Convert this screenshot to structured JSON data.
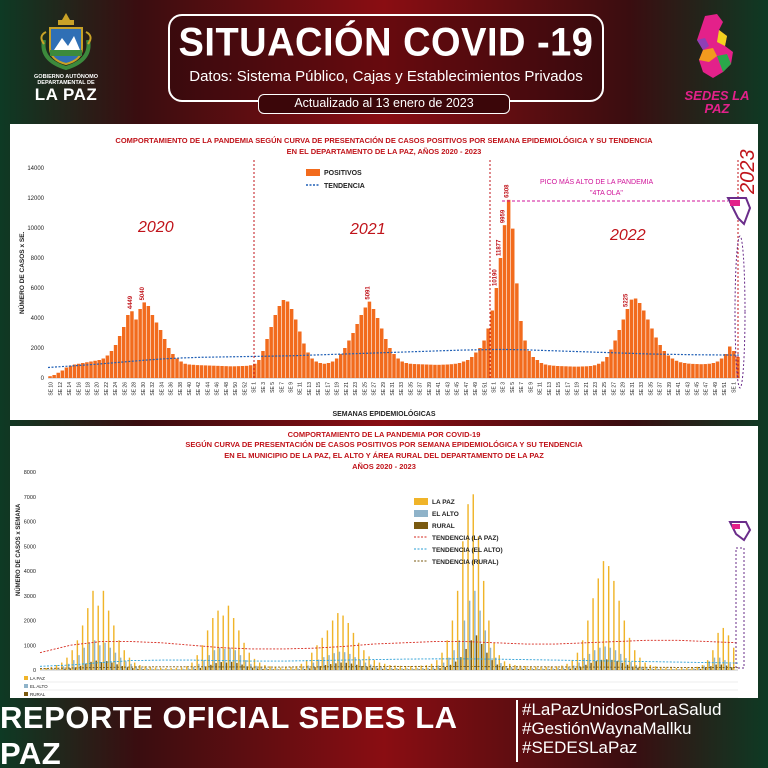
{
  "header": {
    "title": "SITUACIÓN COVID -19",
    "subtitle": "Datos: Sistema Público, Cajas y Establecimientos Privados",
    "updated": "Actualizado  al  13  enero de 2023",
    "left_logo_text": "GOBIERNO AUTÓNOMO DEPARTAMENTAL DE",
    "left_logo_big": "LA PAZ",
    "right_logo_text": "SEDES LA PAZ"
  },
  "footer": {
    "report": "REPORTE OFICIAL SEDES LA PAZ",
    "tags": [
      "#LaPazUnidosPorLaSalud",
      "#GestiónWaynaMallku",
      "#SEDESLaPaz"
    ]
  },
  "colors": {
    "positivos": "#f26b1d",
    "tendencia": "#1f5fb5",
    "lapaz": "#f0b429",
    "elalto": "#8fb3c9",
    "rural": "#7a5a10",
    "title_red": "#c0131a"
  },
  "chart_data": [
    {
      "type": "bar",
      "title": "COMPORTAMIENTO DE LA PANDEMIA SEGÚN CURVA DE PRESENTACIÓN DE CASOS POSITIVOS POR SEMANA EPIDEMIOLÓGICA Y SU TENDENCIA",
      "subtitle": "EN EL DEPARTAMENTO DE LA PAZ, AÑOS 2020 - 2023",
      "xlabel": "SEMANAS EPIDEMIOLÓGICAS",
      "ylabel": "NÚMERO DE CASOS x SE.",
      "ylim": [
        0,
        14000
      ],
      "yticks": [
        0,
        2000,
        4000,
        6000,
        8000,
        10000,
        12000,
        14000
      ],
      "grid": false,
      "legend": [
        "POSITIVOS",
        "TENDENCIA"
      ],
      "legend_position": "top-center",
      "year_labels": [
        "2020",
        "2021",
        "2022",
        "2023"
      ],
      "annotation": "PICO MÁS ALTO DE LA PANDEMIA",
      "annotation2": "\"4TA OLA\"",
      "labeled_values": [
        "10190",
        "11877",
        "9959",
        "6308",
        "4449",
        "5040",
        "5091",
        "5225"
      ],
      "categories_2020": [
        "SE 10",
        "SE 12",
        "SE 14",
        "SE 16",
        "SE 18",
        "SE 20",
        "SE 22",
        "SE 24",
        "SE 26",
        "SE 28",
        "SE 30",
        "SE 32",
        "SE 34",
        "SE 36",
        "SE 38",
        "SE 40",
        "SE 42",
        "SE 44",
        "SE 46",
        "SE 48",
        "SE 50",
        "SE 52"
      ],
      "categories_2021": [
        "SE 1",
        "SE 3",
        "SE 5",
        "SE 7",
        "SE 9",
        "SE 11",
        "SE 13",
        "SE 15",
        "SE 17",
        "SE 19",
        "SE 21",
        "SE 23",
        "SE 25",
        "SE 27",
        "SE 29",
        "SE 31",
        "SE 33",
        "SE 35",
        "SE 37",
        "SE 39",
        "SE 41",
        "SE 43",
        "SE 45",
        "SE 47",
        "SE 49",
        "SE 51"
      ],
      "categories_2022": [
        "SE 1",
        "SE 3",
        "SE 5",
        "SE 7",
        "SE 9",
        "SE 11",
        "SE 13",
        "SE 15",
        "SE 17",
        "SE 19",
        "SE 21",
        "SE 23",
        "SE 25",
        "SE 27",
        "SE 29",
        "SE 31",
        "SE 33",
        "SE 35",
        "SE 37",
        "SE 39",
        "SE 41",
        "SE 43",
        "SE 45",
        "SE 47",
        "SE 49",
        "SE 51"
      ],
      "categories_2023": [
        "SE 1"
      ],
      "values": [
        120,
        200,
        350,
        500,
        700,
        820,
        900,
        950,
        1000,
        1050,
        1100,
        1150,
        1200,
        1300,
        1500,
        1800,
        2200,
        2800,
        3400,
        4200,
        4449,
        3900,
        4600,
        5040,
        4800,
        4200,
        3700,
        3200,
        2600,
        2000,
        1600,
        1300,
        1100,
        950,
        900,
        880,
        860,
        850,
        840,
        830,
        820,
        810,
        800,
        790,
        780,
        780,
        790,
        800,
        810,
        850,
        950,
        1200,
        1800,
        2600,
        3400,
        4200,
        4800,
        5200,
        5100,
        4600,
        3900,
        3100,
        2300,
        1700,
        1300,
        1100,
        1000,
        950,
        1000,
        1100,
        1300,
        1600,
        2000,
        2500,
        3000,
        3600,
        4200,
        4700,
        5091,
        4600,
        4000,
        3300,
        2600,
        2000,
        1600,
        1300,
        1100,
        1000,
        950,
        930,
        920,
        910,
        900,
        890,
        880,
        880,
        890,
        900,
        920,
        950,
        1000,
        1100,
        1200,
        1400,
        1700,
        2000,
        2500,
        3300,
        4500,
        6000,
        8000,
        10190,
        11877,
        9959,
        6308,
        3800,
        2500,
        1800,
        1400,
        1200,
        1000,
        900,
        850,
        820,
        800,
        790,
        780,
        770,
        760,
        760,
        770,
        780,
        800,
        850,
        950,
        1100,
        1400,
        1900,
        2500,
        3200,
        3900,
        4600,
        5225,
        5300,
        5000,
        4500,
        3900,
        3300,
        2700,
        2200,
        1800,
        1500,
        1300,
        1150,
        1050,
        1000,
        960,
        940,
        930,
        920,
        930,
        950,
        1000,
        1100,
        1300,
        1600,
        2100,
        1800,
        1400
      ],
      "trend": [
        700,
        740,
        780,
        820,
        860,
        900,
        950,
        1000,
        1050,
        1100,
        1150,
        1200,
        1240,
        1280,
        1310,
        1340,
        1360,
        1380,
        1390,
        1400,
        1410,
        1420,
        1430,
        1440,
        1450,
        1460,
        1470,
        1480,
        1500,
        1520,
        1540,
        1560,
        1580,
        1600,
        1620,
        1640,
        1660,
        1680,
        1700,
        1720,
        1740,
        1760,
        1780,
        1800,
        1820,
        1840,
        1860,
        1870,
        1880,
        1890,
        1900,
        1900,
        1890,
        1880,
        1860,
        1840,
        1820,
        1800,
        1780,
        1760,
        1740,
        1720,
        1700,
        1680,
        1660,
        1640,
        1620,
        1600,
        1590,
        1580,
        1570,
        1560,
        1550,
        1545,
        1540,
        1535,
        1530,
        1530
      ]
    },
    {
      "type": "bar",
      "title": "COMPORTAMIENTO DE LA PANDEMIA POR COVID-19",
      "subtitle": "SEGÚN CURVA DE PRESENTACIÓN DE CASOS POSITIVOS POR SEMANA EPIDEMIOLÓGICA Y SU TENDENCIA",
      "subtitle2": "EN EL  MUNICIPIO DE LA PAZ, EL ALTO Y ÁREA RURAL DEL DEPARTAMENTO DE LA PAZ",
      "subtitle3": "AÑOS 2020 - 2023",
      "ylabel": "NÚMERO DE CASOS x SEMANA",
      "ylim": [
        0,
        8000
      ],
      "yticks": [
        0,
        1000,
        2000,
        3000,
        4000,
        5000,
        6000,
        7000,
        8000
      ],
      "legend_position": "center-right",
      "series": [
        {
          "name": "LA PAZ",
          "color": "#f0b429",
          "values": [
            50,
            80,
            120,
            200,
            300,
            500,
            800,
            1200,
            1800,
            2500,
            3200,
            2600,
            3200,
            2400,
            1800,
            1200,
            800,
            500,
            300,
            200,
            150,
            120,
            100,
            90,
            80,
            80,
            90,
            100,
            150,
            300,
            600,
            1000,
            1600,
            2100,
            2400,
            2200,
            2600,
            2100,
            1600,
            1100,
            700,
            450,
            300,
            200,
            150,
            120,
            100,
            100,
            120,
            150,
            250,
            400,
            700,
            1000,
            1300,
            1600,
            2000,
            2300,
            2200,
            1900,
            1500,
            1100,
            800,
            550,
            400,
            300,
            250,
            200,
            180,
            170,
            160,
            160,
            170,
            180,
            200,
            250,
            400,
            700,
            1200,
            2000,
            3200,
            5200,
            6700,
            7100,
            5400,
            3600,
            2000,
            1100,
            600,
            350,
            250,
            200,
            180,
            160,
            150,
            140,
            130,
            130,
            140,
            150,
            180,
            250,
            400,
            700,
            1200,
            2000,
            2900,
            3700,
            4400,
            4200,
            3600,
            2800,
            2000,
            1300,
            800,
            500,
            300,
            200,
            150,
            120,
            100,
            90,
            80,
            80,
            90,
            100,
            130,
            200,
            400,
            800,
            1500,
            1700,
            1400,
            900
          ]
        },
        {
          "name": "EL ALTO",
          "color": "#8fb3c9",
          "values": [
            20,
            30,
            50,
            80,
            150,
            250,
            400,
            600,
            900,
            1100,
            1200,
            1000,
            1100,
            900,
            700,
            500,
            350,
            250,
            150,
            100,
            80,
            60,
            50,
            45,
            40,
            40,
            45,
            50,
            70,
            130,
            250,
            400,
            600,
            800,
            900,
            850,
            900,
            800,
            600,
            400,
            250,
            170,
            120,
            90,
            70,
            60,
            50,
            50,
            60,
            70,
            110,
            180,
            300,
            420,
            520,
            600,
            680,
            740,
            720,
            650,
            520,
            400,
            300,
            220,
            160,
            120,
            100,
            90,
            80,
            75,
            70,
            70,
            75,
            80,
            90,
            110,
            180,
            300,
            500,
            800,
            1200,
            2000,
            2800,
            3200,
            2400,
            1600,
            900,
            500,
            280,
            160,
            120,
            100,
            90,
            80,
            75,
            70,
            65,
            65,
            70,
            75,
            90,
            120,
            180,
            300,
            480,
            650,
            800,
            900,
            950,
            900,
            800,
            650,
            480,
            320,
            200,
            130,
            90,
            70,
            60,
            50,
            45,
            40,
            40,
            45,
            50,
            65,
            100,
            180,
            350,
            500,
            500,
            400,
            250
          ]
        },
        {
          "name": "RURAL",
          "color": "#7a5a10",
          "values": [
            5,
            8,
            12,
            20,
            40,
            70,
            110,
            170,
            260,
            330,
            380,
            320,
            360,
            300,
            230,
            160,
            110,
            80,
            50,
            35,
            25,
            20,
            18,
            16,
            15,
            15,
            16,
            18,
            25,
            45,
            85,
            140,
            210,
            280,
            320,
            300,
            330,
            290,
            220,
            150,
            95,
            65,
            45,
            35,
            27,
            23,
            20,
            20,
            23,
            27,
            42,
            70,
            115,
            160,
            200,
            240,
            270,
            300,
            290,
            260,
            210,
            160,
            120,
            90,
            65,
            50,
            40,
            36,
            32,
            30,
            28,
            28,
            30,
            32,
            36,
            45,
            75,
            125,
            210,
            340,
            520,
            850,
            1200,
            1400,
            1050,
            700,
            400,
            220,
            125,
            72,
            54,
            45,
            40,
            36,
            34,
            32,
            30,
            30,
            32,
            34,
            40,
            54,
            80,
            130,
            210,
            290,
            360,
            410,
            430,
            410,
            360,
            290,
            210,
            140,
            90,
            58,
            40,
            32,
            27,
            23,
            20,
            18,
            18,
            20,
            23,
            29,
            45,
            80,
            155,
            220,
            220,
            180,
            110
          ]
        }
      ],
      "trend_series": [
        "TENDENCIA (LA PAZ)",
        "TENDENCIA (EL ALTO)",
        "TENDENCIA (RURAL)"
      ],
      "trend_lapaz": [
        700,
        1000,
        1150,
        1150,
        1100,
        1000,
        900,
        850,
        850,
        880,
        950,
        1050,
        1100,
        1150,
        1150,
        1100,
        1050,
        1050,
        1100,
        1150,
        1200,
        1200,
        1150,
        1100
      ],
      "trend_elalto": [
        150,
        200,
        300,
        380,
        400,
        400,
        380,
        360,
        360,
        380,
        400,
        420,
        440,
        450,
        450,
        440,
        420,
        400,
        380,
        360,
        340,
        320,
        300,
        280
      ],
      "trend_rural": [
        60,
        80,
        100,
        120,
        130,
        130,
        125,
        120,
        120,
        125,
        130,
        135,
        140,
        140,
        140,
        135,
        130,
        125,
        120,
        115,
        110,
        105,
        100,
        95
      ],
      "row_labels": [
        "LA PAZ",
        "EL ALTO",
        "RURAL"
      ]
    }
  ]
}
